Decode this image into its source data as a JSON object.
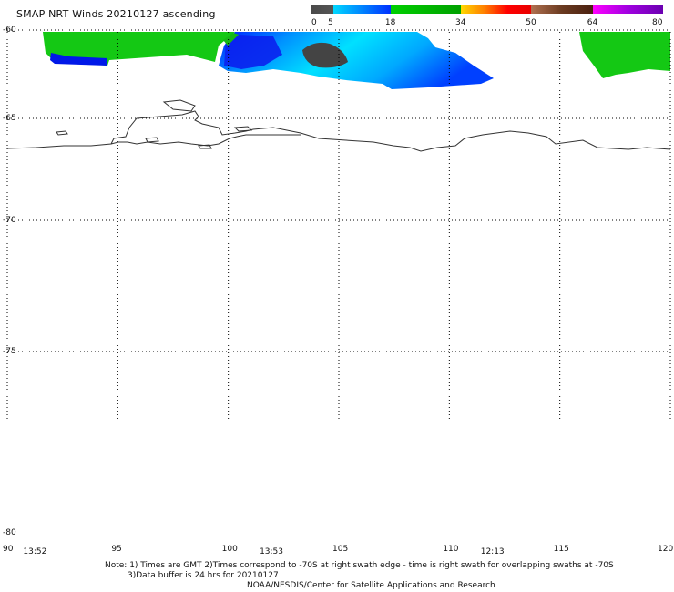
{
  "title": "SMAP NRT Winds 20210127 ascending",
  "colorbar": {
    "ticks": [
      {
        "value": 0,
        "label": "0"
      },
      {
        "value": 5,
        "label": "5"
      },
      {
        "value": 18,
        "label": "18"
      },
      {
        "value": 34,
        "label": "34"
      },
      {
        "value": 50,
        "label": "50"
      },
      {
        "value": 64,
        "label": "64"
      },
      {
        "value": 80,
        "label": "80"
      }
    ],
    "segments": [
      {
        "from": 0,
        "to": 5,
        "colors": [
          "#4a4a4a",
          "#555555"
        ]
      },
      {
        "from": 5,
        "to": 18,
        "colors": [
          "#00d8ff",
          "#0030ff"
        ]
      },
      {
        "from": 18,
        "to": 34,
        "colors": [
          "#00d000",
          "#00a000"
        ]
      },
      {
        "from": 34,
        "to": 50,
        "colors": [
          "#ffd800",
          "#ff8000",
          "#ff0000",
          "#e80000"
        ]
      },
      {
        "from": 50,
        "to": 64,
        "colors": [
          "#b07050",
          "#6a3a20",
          "#4a2010"
        ]
      },
      {
        "from": 64,
        "to": 80,
        "colors": [
          "#ff00ff",
          "#a000e0",
          "#6a00b0"
        ]
      }
    ]
  },
  "latitudes": [
    {
      "value": -60,
      "label": "-60"
    },
    {
      "value": -65,
      "label": "-65"
    },
    {
      "value": -70,
      "label": "-70"
    },
    {
      "value": -75,
      "label": "-75"
    },
    {
      "value": -80,
      "label": "-80"
    }
  ],
  "longitudes": [
    {
      "value": 90,
      "label": "90"
    },
    {
      "value": 95,
      "label": "95"
    },
    {
      "value": 100,
      "label": "100"
    },
    {
      "value": 105,
      "label": "105"
    },
    {
      "value": 110,
      "label": "110"
    },
    {
      "value": 115,
      "label": "115"
    },
    {
      "value": 120,
      "label": "120"
    }
  ],
  "swath_times": [
    {
      "lon": 90.8,
      "label": "13:52"
    },
    {
      "lon": 101.5,
      "label": "13:53"
    },
    {
      "lon": 111.5,
      "label": "12:13"
    }
  ],
  "notes": {
    "line1": "Note: 1) Times are GMT 2)Times correspond to -70S at right swath edge - time is right swath for overlapping swaths at -70S",
    "line2": "3)Data buffer is 24 hrs for 20210127",
    "line3": "NOAA/NESDIS/Center for Satellite Applications and Research"
  },
  "colors": {
    "grid": "#000000",
    "coast": "#333333",
    "calm": "#464646",
    "strong_green": "#12c812"
  }
}
